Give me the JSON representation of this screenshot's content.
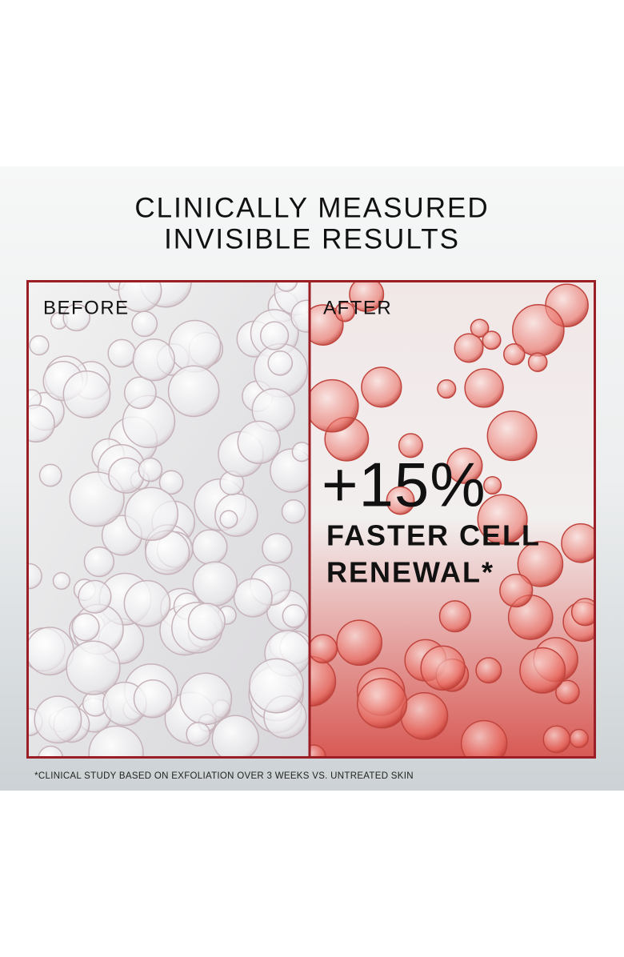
{
  "header": {
    "title_lines": [
      "CLINICALLY MEASURED",
      "INVISIBLE RESULTS"
    ]
  },
  "panels": [
    {
      "label": "BEFORE"
    },
    {
      "label": "AFTER",
      "stat": "+15%",
      "caption_lines": [
        "FASTER CELL",
        "RENEWAL*"
      ]
    }
  ],
  "footnote": "*CLINICAL STUDY BASED ON EXFOLIATION OVER 3 WEEKS VS. UNTREATED SKIN"
}
